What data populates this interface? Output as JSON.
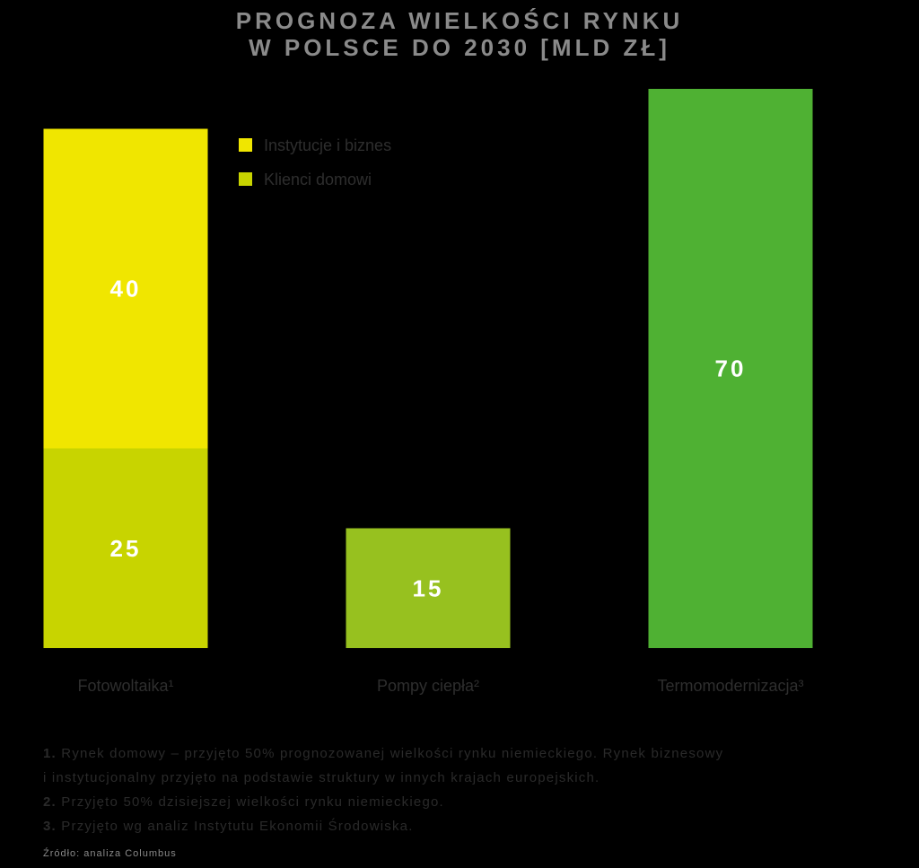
{
  "title_lines": [
    "PROGNOZA WIELKOŚCI RYNKU",
    "W POLSCE DO 2030 [MLD ZŁ]"
  ],
  "legend": [
    {
      "label": "Instytucje i biznes",
      "color": "#f0e600"
    },
    {
      "label": "Klienci domowi",
      "color": "#c8d400"
    }
  ],
  "chart_data": {
    "type": "bar",
    "stacked": true,
    "title": "PROGNOZA WIELKOŚCI RYNKU W POLSCE DO 2030 [MLD ZŁ]",
    "categories": [
      "Fotowoltaika¹",
      "Pompy ciepła²",
      "Termomodernizacja³"
    ],
    "bars": [
      {
        "category": "Fotowoltaika¹",
        "segments": [
          {
            "series": "Klienci domowi",
            "value": 25,
            "label": "25",
            "color": "#c8d400"
          },
          {
            "series": "Instytucje i biznes",
            "value": 40,
            "label": "40",
            "color": "#f0e600"
          }
        ]
      },
      {
        "category": "Pompy ciepła²",
        "segments": [
          {
            "value": 15,
            "label": "15",
            "color": "#97c11f"
          }
        ]
      },
      {
        "category": "Termomodernizacja³",
        "segments": [
          {
            "value": 70,
            "label": "70",
            "color": "#4fb133"
          }
        ]
      }
    ],
    "ylim": [
      0,
      70
    ],
    "legend_position": "top-left",
    "grid": false
  },
  "notes": [
    {
      "num": "1.",
      "text": "Rynek domowy – przyjęto 50% prognozowanej wielkości rynku niemieckiego. Rynek biznesowy"
    },
    {
      "num": "",
      "text": "i instytucjonalny przyjęto na podstawie struktury w innych krajach europejskich."
    },
    {
      "num": "2.",
      "text": "Przyjęto 50% dzisiejszej wielkości rynku niemieckiego."
    },
    {
      "num": "3.",
      "text": "Przyjęto wg analiz Instytutu Ekonomii Środowiska."
    }
  ],
  "source": "Źródło: analiza Columbus"
}
